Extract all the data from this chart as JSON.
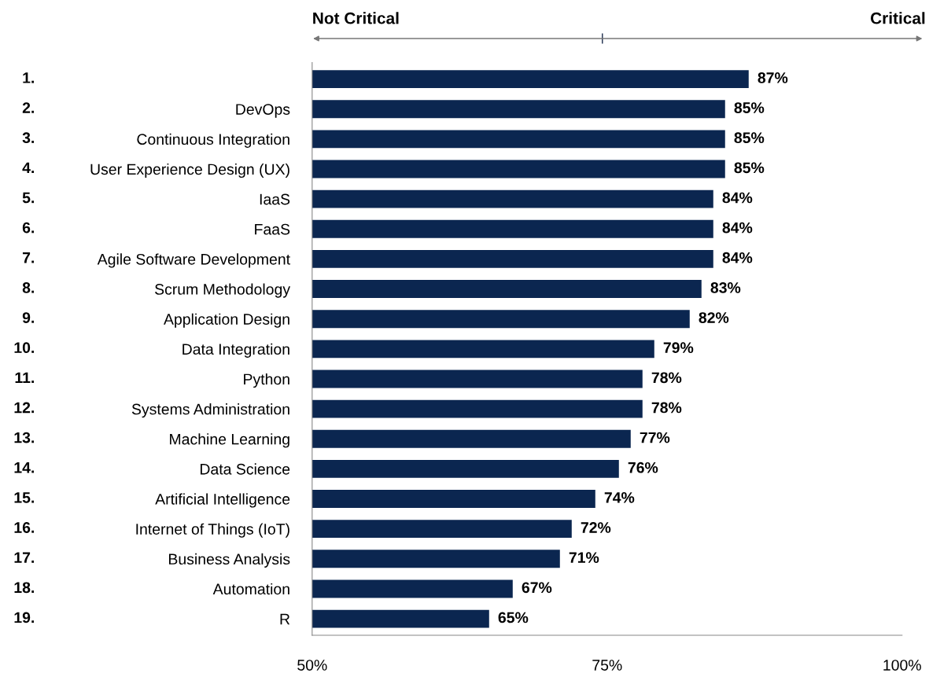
{
  "chart_data": {
    "type": "bar",
    "orientation": "horizontal",
    "categories": [
      null,
      "DevOps",
      "Continuous Integration",
      "User Experience Design (UX)",
      "IaaS",
      "FaaS",
      "Agile Software Development",
      "Scrum Methodology",
      "Application Design",
      "Data Integration",
      "Python",
      "Systems Administration",
      "Machine Learning",
      "Data Science",
      "Artificial Intelligence",
      "Internet of Things (IoT)",
      "Business Analysis",
      "Automation",
      "R"
    ],
    "values": [
      87,
      85,
      85,
      85,
      84,
      84,
      84,
      83,
      82,
      79,
      78,
      78,
      77,
      76,
      74,
      72,
      71,
      67,
      65
    ],
    "value_labels": [
      "87%",
      "85%",
      "85%",
      "85%",
      "84%",
      "84%",
      "84%",
      "83%",
      "82%",
      "79%",
      "78%",
      "78%",
      "77%",
      "76%",
      "74%",
      "72%",
      "71%",
      "67%",
      "65%"
    ],
    "color": "#0b2650",
    "xlim": [
      50,
      100
    ],
    "xticks": [
      {
        "value": 50,
        "label": "50%"
      },
      {
        "value": 75,
        "label": "75%"
      },
      {
        "value": 100,
        "label": "100%"
      }
    ],
    "annotations": [
      "Not Critical",
      "Critical",
      "1.",
      "2.",
      "3.",
      "4.",
      "5.",
      "6.",
      "7.",
      "8.",
      "9.",
      "10.",
      "11.",
      "12.",
      "13.",
      "14.",
      "15.",
      "16.",
      "17.",
      "18.",
      "19."
    ],
    "grid": false,
    "legend": false
  }
}
